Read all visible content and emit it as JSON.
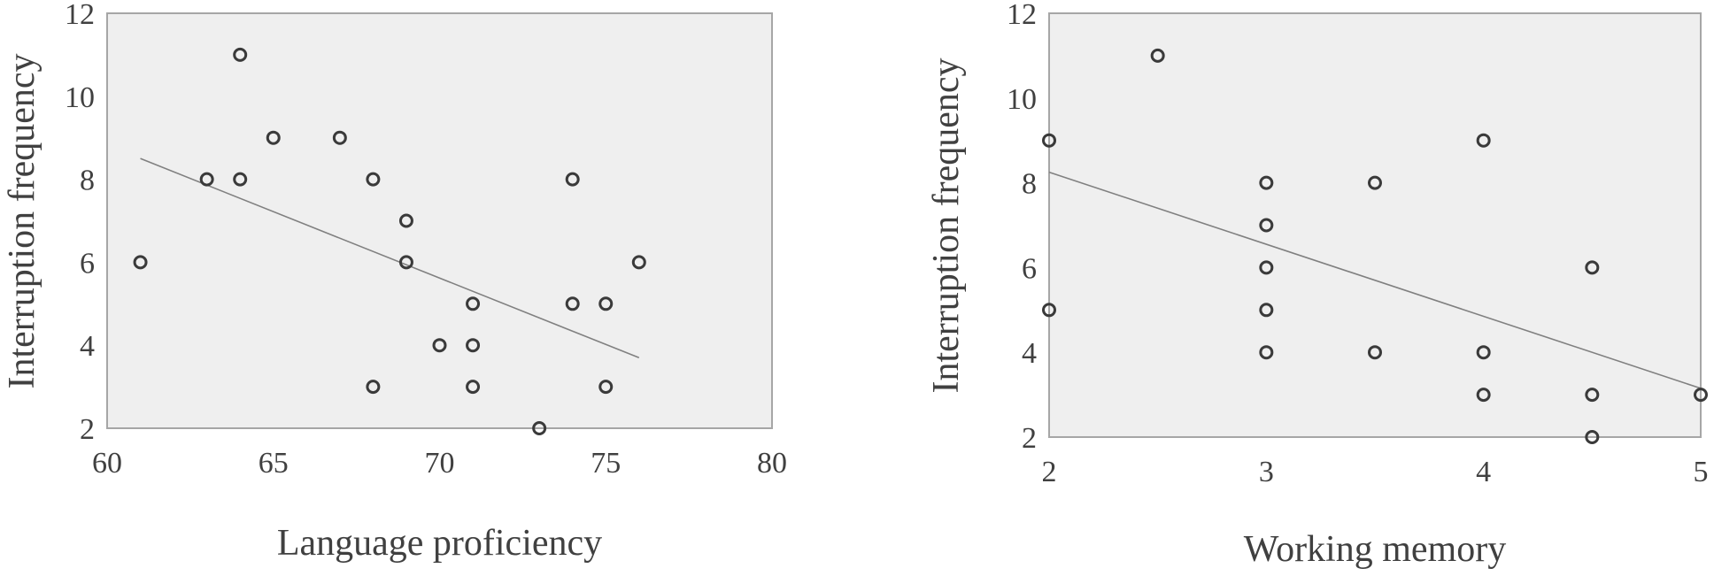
{
  "chart_data": [
    {
      "type": "scatter",
      "xlabel": "Language proficiency",
      "ylabel": "Interruption frequency",
      "xlim": [
        60,
        80
      ],
      "ylim": [
        2,
        12
      ],
      "xticks": [
        60,
        65,
        70,
        75,
        80
      ],
      "yticks": [
        2,
        4,
        6,
        8,
        10,
        12
      ],
      "grid": false,
      "series": [
        {
          "points": [
            {
              "x": 61,
              "y": 6
            },
            {
              "x": 63,
              "y": 8
            },
            {
              "x": 64,
              "y": 11
            },
            {
              "x": 64,
              "y": 8
            },
            {
              "x": 65,
              "y": 9
            },
            {
              "x": 67,
              "y": 9
            },
            {
              "x": 68,
              "y": 8
            },
            {
              "x": 68,
              "y": 3
            },
            {
              "x": 69,
              "y": 7
            },
            {
              "x": 69,
              "y": 6
            },
            {
              "x": 70,
              "y": 4
            },
            {
              "x": 71,
              "y": 5
            },
            {
              "x": 71,
              "y": 4
            },
            {
              "x": 71,
              "y": 3
            },
            {
              "x": 73,
              "y": 2
            },
            {
              "x": 74,
              "y": 8
            },
            {
              "x": 74,
              "y": 5
            },
            {
              "x": 75,
              "y": 5
            },
            {
              "x": 75,
              "y": 3
            },
            {
              "x": 76,
              "y": 6
            }
          ]
        }
      ],
      "trendline": {
        "x": [
          61,
          76
        ],
        "y": [
          8.5,
          3.7
        ]
      },
      "colors": {
        "plot_background": "#efefef",
        "axis": "#a6a6a6",
        "marker": "#3a3a3a",
        "trendline": "#808080"
      }
    },
    {
      "type": "scatter",
      "xlabel": "Working memory",
      "ylabel": "Interruption frequency",
      "xlim": [
        2,
        5
      ],
      "ylim": [
        2,
        12
      ],
      "xticks": [
        2,
        3,
        4,
        5
      ],
      "yticks": [
        2,
        4,
        6,
        8,
        10,
        12
      ],
      "grid": false,
      "series": [
        {
          "points": [
            {
              "x": 2,
              "y": 9
            },
            {
              "x": 2,
              "y": 5
            },
            {
              "x": 2.5,
              "y": 11
            },
            {
              "x": 3,
              "y": 8
            },
            {
              "x": 3,
              "y": 7
            },
            {
              "x": 3,
              "y": 6
            },
            {
              "x": 3,
              "y": 5
            },
            {
              "x": 3,
              "y": 4
            },
            {
              "x": 3.5,
              "y": 8
            },
            {
              "x": 3.5,
              "y": 4
            },
            {
              "x": 4,
              "y": 9
            },
            {
              "x": 4,
              "y": 4
            },
            {
              "x": 4,
              "y": 3
            },
            {
              "x": 4.5,
              "y": 6
            },
            {
              "x": 4.5,
              "y": 3
            },
            {
              "x": 4.5,
              "y": 2
            },
            {
              "x": 5,
              "y": 3
            }
          ]
        }
      ],
      "trendline": {
        "x": [
          2,
          5
        ],
        "y": [
          8.25,
          3.15
        ]
      },
      "colors": {
        "plot_background": "#efefef",
        "axis": "#a6a6a6",
        "marker": "#3a3a3a",
        "trendline": "#808080"
      }
    }
  ]
}
